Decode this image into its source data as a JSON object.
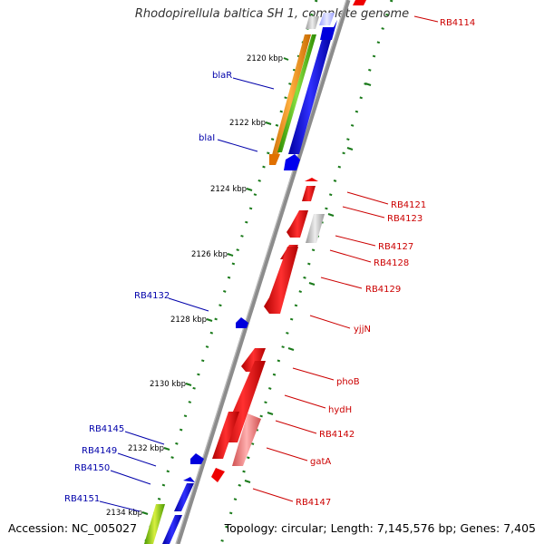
{
  "title": "Rhodopirellula baltica SH 1, complete genome",
  "accession": "Accession: NC_005027",
  "topology": "Topology: circular; Length: 7,145,576 bp; Genes: 7,405",
  "colors": {
    "forward_label": "#0000aa",
    "reverse_label": "#cc0000",
    "backbone": "#888888",
    "tick_dots": "#1a7a1a"
  },
  "kbp_labels": [
    "2120 kbp",
    "2122 kbp",
    "2124 kbp",
    "2126 kbp",
    "2128 kbp",
    "2130 kbp",
    "2132 kbp",
    "2134 kbp"
  ],
  "forward_gene_labels": [
    "blaR",
    "blaI",
    "RB4132",
    "RB4145",
    "RB4149",
    "RB4150",
    "RB4151"
  ],
  "reverse_gene_labels": [
    "RB4114",
    "RB4121",
    "RB4123",
    "RB4127",
    "RB4128",
    "RB4129",
    "yjjN",
    "phoB",
    "hydH",
    "RB4142",
    "gatA",
    "RB4147"
  ]
}
